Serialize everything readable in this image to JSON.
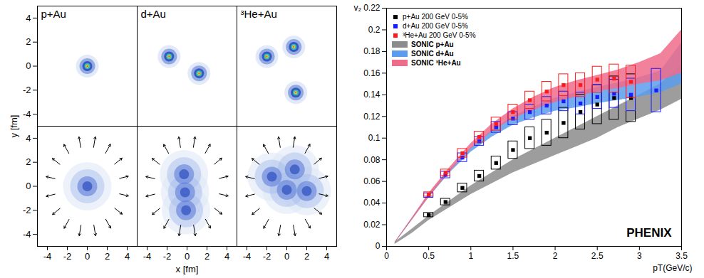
{
  "chart_data": [
    {
      "type": "density",
      "xlabel": "x [fm]",
      "ylabel": "y [fm]",
      "xlim": [
        -5,
        5
      ],
      "ylim": [
        -5,
        5
      ],
      "xticks": [
        -4,
        -2,
        0,
        2,
        4
      ],
      "yticks": [
        -4,
        -2,
        0,
        2,
        4
      ],
      "grid": false,
      "panels": [
        {
          "title": "p+Au",
          "initial": [
            {
              "x": 0,
              "y": 0
            }
          ],
          "evolved": [
            {
              "x": 0,
              "y": 0
            }
          ]
        },
        {
          "title": "d+Au",
          "initial": [
            {
              "x": -1.8,
              "y": 0.8
            },
            {
              "x": 1.2,
              "y": -0.6
            }
          ],
          "evolved": [
            {
              "x": -0.3,
              "y": 1.0
            },
            {
              "x": -0.2,
              "y": -0.5
            },
            {
              "x": -0.1,
              "y": -2.0
            }
          ]
        },
        {
          "title": "³He+Au",
          "initial": [
            {
              "x": -2.0,
              "y": 0.8
            },
            {
              "x": 0.7,
              "y": 1.6
            },
            {
              "x": 0.9,
              "y": -2.2
            }
          ],
          "evolved": [
            {
              "x": -1.5,
              "y": 0.8
            },
            {
              "x": 0.8,
              "y": 1.4
            },
            {
              "x": 2.0,
              "y": -0.4
            },
            {
              "x": 0.0,
              "y": -0.3
            }
          ]
        }
      ]
    },
    {
      "type": "scatter",
      "xlabel": "pT(GeV/c)",
      "ylabel": "v₂",
      "xlim": [
        0,
        3.5
      ],
      "ylim": [
        0,
        0.22
      ],
      "xticks": [
        0,
        0.5,
        1,
        1.5,
        2,
        2.5,
        3,
        3.5
      ],
      "yticks": [
        0,
        0.02,
        0.04,
        0.06,
        0.08,
        0.1,
        0.12,
        0.14,
        0.16,
        0.18,
        0.2,
        0.22
      ],
      "grid": false,
      "legend": "top-left",
      "annotations": [
        "PHENIX"
      ],
      "series": [
        {
          "name": "p+Au 200 GeV 0-5%",
          "type": "scatter",
          "marker": "square",
          "color": "#000000",
          "x": [
            0.5,
            0.7,
            0.9,
            1.1,
            1.3,
            1.5,
            1.7,
            1.9,
            2.1,
            2.3,
            2.5,
            2.7,
            2.9
          ],
          "values": [
            0.029,
            0.041,
            0.054,
            0.065,
            0.077,
            0.089,
            0.1,
            0.105,
            0.114,
            0.124,
            0.131,
            0.137,
            0.137
          ],
          "syst": [
            0.002,
            0.003,
            0.004,
            0.005,
            0.006,
            0.008,
            0.01,
            0.012,
            0.014,
            0.016,
            0.018,
            0.02,
            0.022
          ]
        },
        {
          "name": "d+Au 200 GeV 0-5%",
          "type": "scatter",
          "marker": "square",
          "color": "#1a1aff",
          "x": [
            0.5,
            0.7,
            0.9,
            1.1,
            1.3,
            1.5,
            1.7,
            1.9,
            2.1,
            2.3,
            2.5,
            2.7,
            2.9,
            3.2
          ],
          "values": [
            0.047,
            0.066,
            0.082,
            0.097,
            0.11,
            0.118,
            0.124,
            0.13,
            0.134,
            0.132,
            0.138,
            0.141,
            0.14,
            0.144
          ],
          "syst": [
            0.002,
            0.003,
            0.004,
            0.004,
            0.005,
            0.006,
            0.007,
            0.008,
            0.009,
            0.01,
            0.011,
            0.013,
            0.015,
            0.02
          ]
        },
        {
          "name": "³He+Au 200 GeV 0-5%",
          "type": "scatter",
          "marker": "square",
          "color": "#ff1a1a",
          "x": [
            0.5,
            0.7,
            0.9,
            1.1,
            1.3,
            1.5,
            1.7,
            1.9,
            2.1,
            2.3,
            2.5,
            2.7,
            2.9
          ],
          "values": [
            0.048,
            0.068,
            0.086,
            0.101,
            0.113,
            0.124,
            0.135,
            0.143,
            0.149,
            0.149,
            0.154,
            0.155,
            0.152
          ],
          "syst": [
            0.002,
            0.003,
            0.004,
            0.005,
            0.006,
            0.007,
            0.008,
            0.009,
            0.01,
            0.011,
            0.012,
            0.013,
            0.015
          ]
        },
        {
          "name": "SONIC p+Au",
          "type": "area",
          "color": "#8c8c8c",
          "x": [
            0.1,
            0.3,
            0.5,
            0.75,
            1,
            1.25,
            1.5,
            1.75,
            2,
            2.25,
            2.5,
            2.75,
            3,
            3.25,
            3.5
          ],
          "lower": [
            0.002,
            0.012,
            0.024,
            0.036,
            0.048,
            0.058,
            0.068,
            0.076,
            0.084,
            0.092,
            0.1,
            0.11,
            0.118,
            0.126,
            0.136
          ],
          "upper": [
            0.004,
            0.016,
            0.028,
            0.042,
            0.056,
            0.068,
            0.08,
            0.09,
            0.1,
            0.11,
            0.12,
            0.13,
            0.14,
            0.15,
            0.168
          ]
        },
        {
          "name": "SONIC d+Au",
          "type": "area",
          "color": "#5d9cec",
          "x": [
            0.1,
            0.3,
            0.5,
            0.75,
            1,
            1.25,
            1.5,
            1.75,
            2,
            2.25,
            2.5,
            2.75,
            3,
            3.25,
            3.5
          ],
          "lower": [
            0.003,
            0.024,
            0.045,
            0.068,
            0.087,
            0.101,
            0.112,
            0.119,
            0.125,
            0.128,
            0.132,
            0.135,
            0.138,
            0.142,
            0.15
          ],
          "upper": [
            0.004,
            0.026,
            0.048,
            0.071,
            0.091,
            0.107,
            0.12,
            0.129,
            0.137,
            0.142,
            0.147,
            0.151,
            0.156,
            0.162,
            0.188
          ]
        },
        {
          "name": "SONIC ³He+Au",
          "type": "area",
          "color": "#f06b8a",
          "x": [
            0.1,
            0.3,
            0.5,
            0.75,
            1,
            1.25,
            1.5,
            1.75,
            2,
            2.25,
            2.5,
            2.75,
            3,
            3.25,
            3.5
          ],
          "lower": [
            0.003,
            0.024,
            0.045,
            0.069,
            0.09,
            0.106,
            0.118,
            0.126,
            0.133,
            0.138,
            0.143,
            0.146,
            0.15,
            0.153,
            0.16
          ],
          "upper": [
            0.004,
            0.026,
            0.049,
            0.073,
            0.095,
            0.113,
            0.127,
            0.138,
            0.147,
            0.153,
            0.158,
            0.163,
            0.17,
            0.178,
            0.2
          ]
        }
      ]
    }
  ]
}
